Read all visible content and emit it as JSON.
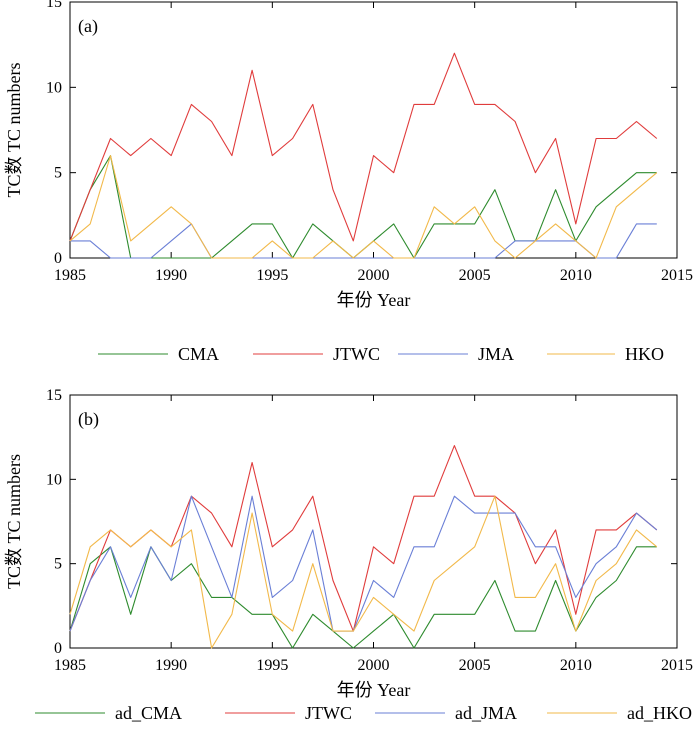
{
  "chart_data": [
    {
      "type": "line",
      "panel_label": "(a)",
      "xlabel": "年份 Year",
      "ylabel": "TC数 TC numbers",
      "xlim": [
        1985,
        2015
      ],
      "ylim": [
        0,
        15
      ],
      "xticks": [
        "1985",
        "1990",
        "1995",
        "2000",
        "2005",
        "2010",
        "2015"
      ],
      "yticks": [
        "0",
        "5",
        "10",
        "15"
      ],
      "x": [
        1985,
        1986,
        1987,
        1988,
        1989,
        1990,
        1991,
        1992,
        1993,
        1994,
        1995,
        1996,
        1997,
        1998,
        1999,
        2000,
        2001,
        2002,
        2003,
        2004,
        2005,
        2006,
        2007,
        2008,
        2009,
        2010,
        2011,
        2012,
        2013,
        2014
      ],
      "series": [
        {
          "name": "CMA",
          "color": "#2e8b2e",
          "values": [
            1,
            4,
            6,
            0,
            0,
            0,
            0,
            0,
            1,
            2,
            2,
            0,
            2,
            1,
            0,
            1,
            2,
            0,
            2,
            2,
            2,
            4,
            1,
            1,
            4,
            1,
            3,
            4,
            5,
            5
          ]
        },
        {
          "name": "JTWC",
          "color": "#e03c3c",
          "values": [
            1,
            4,
            7,
            6,
            7,
            6,
            9,
            8,
            6,
            11,
            6,
            7,
            9,
            4,
            1,
            6,
            5,
            9,
            9,
            12,
            9,
            9,
            8,
            5,
            7,
            2,
            7,
            7,
            8,
            7
          ]
        },
        {
          "name": "JMA",
          "color": "#6a7fd6",
          "values": [
            1,
            1,
            0,
            0,
            0,
            1,
            2,
            0,
            0,
            0,
            0,
            0,
            0,
            0,
            0,
            0,
            0,
            0,
            0,
            0,
            0,
            0,
            1,
            1,
            1,
            1,
            0,
            0,
            2,
            2
          ]
        },
        {
          "name": "HKO",
          "color": "#f2b94a",
          "values": [
            1,
            2,
            6,
            1,
            2,
            3,
            2,
            0,
            0,
            0,
            1,
            0,
            0,
            1,
            0,
            1,
            0,
            0,
            3,
            2,
            3,
            1,
            0,
            1,
            2,
            1,
            0,
            3,
            4,
            5
          ]
        }
      ],
      "legend_position": "bottom"
    },
    {
      "type": "line",
      "panel_label": "(b)",
      "xlabel": "年份 Year",
      "ylabel": "TC数 TC numbers",
      "xlim": [
        1985,
        2015
      ],
      "ylim": [
        0,
        15
      ],
      "xticks": [
        "1985",
        "1990",
        "1995",
        "2000",
        "2005",
        "2010",
        "2015"
      ],
      "yticks": [
        "0",
        "5",
        "10",
        "15"
      ],
      "x": [
        1985,
        1986,
        1987,
        1988,
        1989,
        1990,
        1991,
        1992,
        1993,
        1994,
        1995,
        1996,
        1997,
        1998,
        1999,
        2000,
        2001,
        2002,
        2003,
        2004,
        2005,
        2006,
        2007,
        2008,
        2009,
        2010,
        2011,
        2012,
        2013,
        2014
      ],
      "series": [
        {
          "name": "ad_CMA",
          "color": "#2e8b2e",
          "values": [
            1,
            5,
            6,
            2,
            6,
            4,
            5,
            3,
            3,
            2,
            2,
            0,
            2,
            1,
            0,
            1,
            2,
            0,
            2,
            2,
            2,
            4,
            1,
            1,
            4,
            1,
            3,
            4,
            6,
            6
          ]
        },
        {
          "name": "JTWC",
          "color": "#e03c3c",
          "values": [
            1,
            4,
            7,
            6,
            7,
            6,
            9,
            8,
            6,
            11,
            6,
            7,
            9,
            4,
            1,
            6,
            5,
            9,
            9,
            12,
            9,
            9,
            8,
            5,
            7,
            2,
            7,
            7,
            8,
            7
          ]
        },
        {
          "name": "ad_JMA",
          "color": "#6a7fd6",
          "values": [
            1,
            4,
            6,
            3,
            6,
            4,
            9,
            6,
            3,
            9,
            3,
            4,
            7,
            1,
            1,
            4,
            3,
            6,
            6,
            9,
            8,
            8,
            8,
            6,
            6,
            3,
            5,
            6,
            8,
            7
          ]
        },
        {
          "name": "ad_HKO",
          "color": "#f2b94a",
          "values": [
            2,
            6,
            7,
            6,
            7,
            6,
            7,
            0,
            2,
            8,
            2,
            1,
            5,
            1,
            1,
            3,
            2,
            1,
            4,
            5,
            6,
            9,
            3,
            3,
            5,
            1,
            4,
            5,
            7,
            6
          ]
        }
      ],
      "legend_position": "bottom"
    }
  ]
}
